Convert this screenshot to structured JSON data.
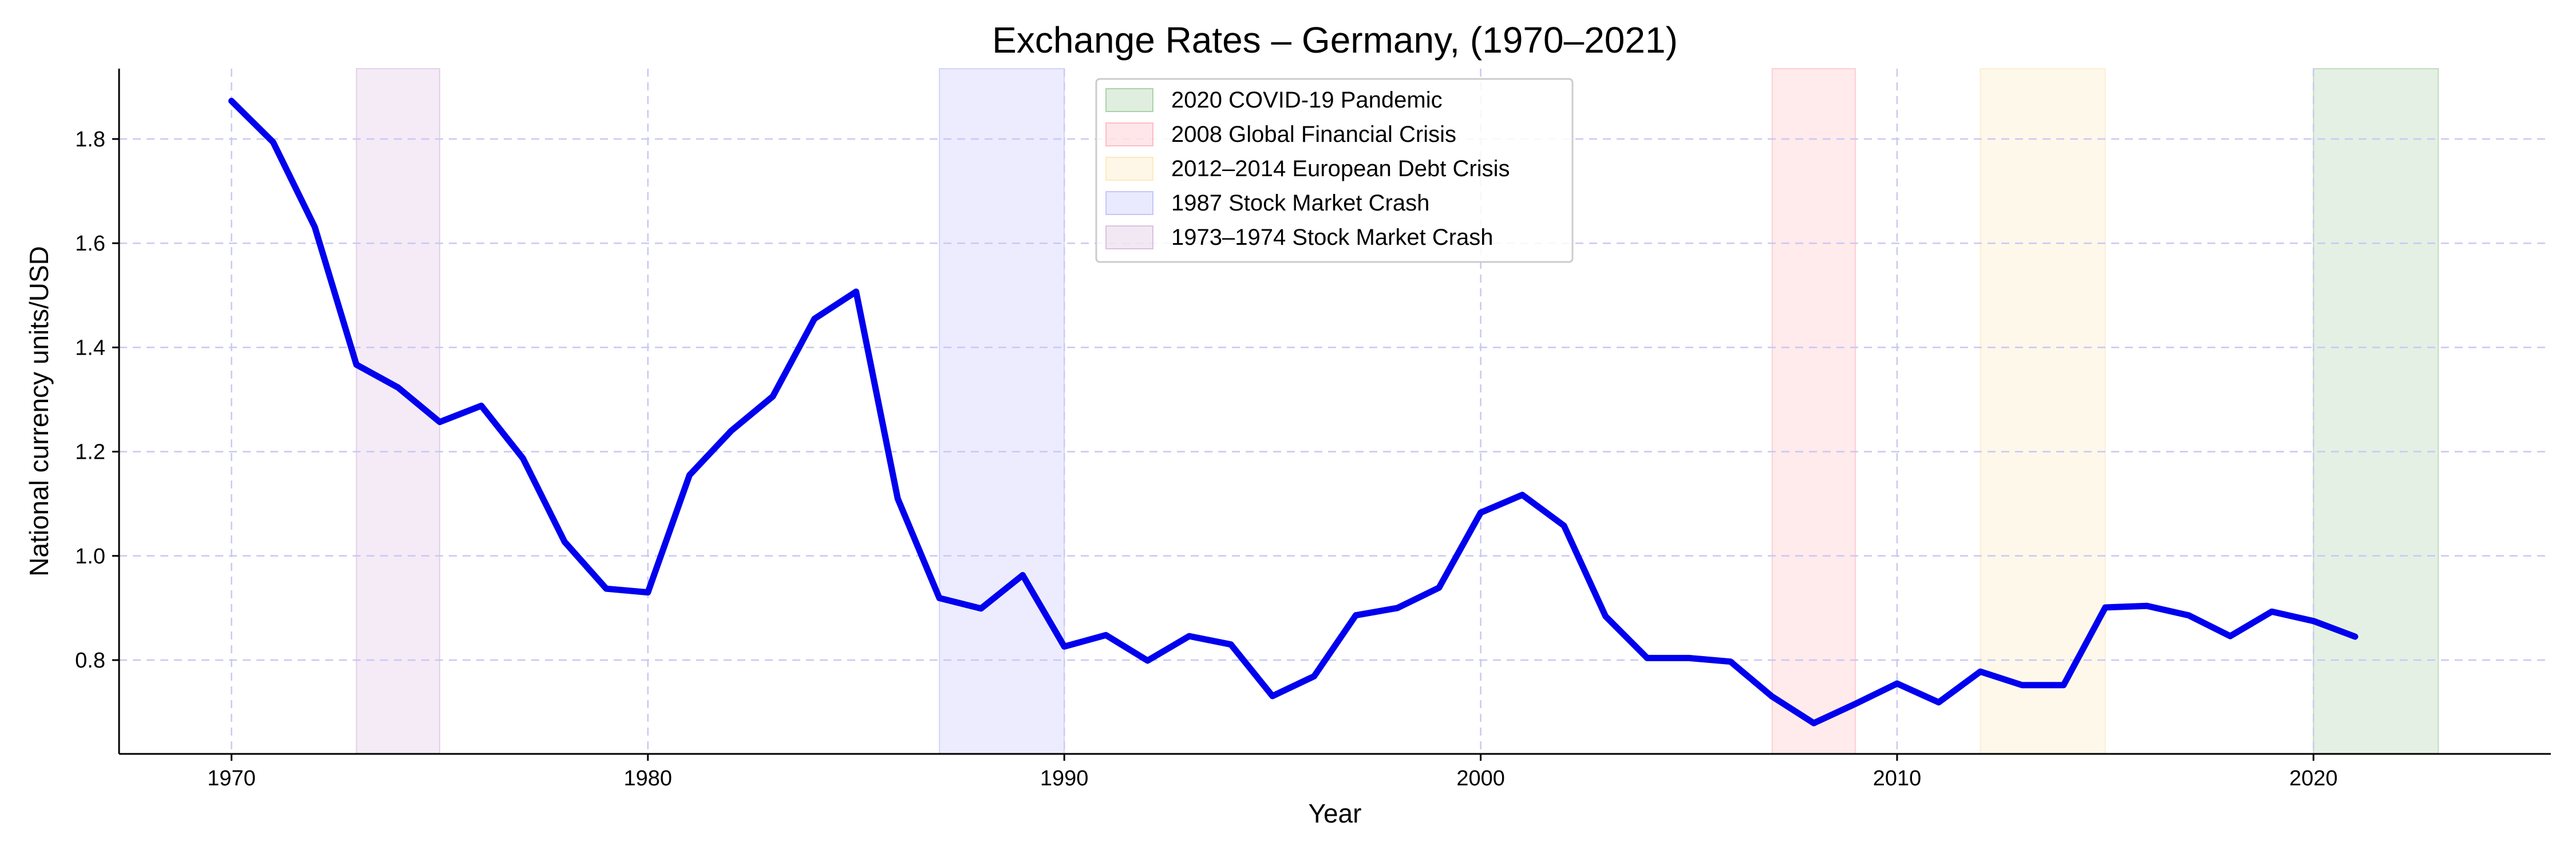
{
  "chart_data": {
    "type": "line",
    "title": "Exchange Rates – Germany, (1970–2021)",
    "xlabel": "Year",
    "ylabel": "National currency units/USD",
    "xlim": [
      1967.3,
      2025.7
    ],
    "ylim": [
      0.62,
      1.935
    ],
    "grid": true,
    "legend_position": "top-center",
    "x_ticks": [
      1970,
      1980,
      1990,
      2000,
      2010,
      2020
    ],
    "y_ticks": [
      0.8,
      1.0,
      1.2,
      1.4,
      1.6,
      1.8
    ],
    "series": [
      {
        "name": "",
        "color": "#0000ee",
        "x": [
          1970,
          1971,
          1972,
          1973,
          1974,
          1975,
          1976,
          1977,
          1978,
          1979,
          1980,
          1981,
          1982,
          1983,
          1984,
          1985,
          1986,
          1987,
          1988,
          1989,
          1990,
          1991,
          1992,
          1993,
          1994,
          1995,
          1996,
          1997,
          1998,
          1999,
          2000,
          2001,
          2002,
          2003,
          2004,
          2005,
          2006,
          2007,
          2008,
          2009,
          2010,
          2011,
          2012,
          2013,
          2014,
          2015,
          2016,
          2017,
          2018,
          2019,
          2020,
          2021
        ],
        "values": [
          1.873,
          1.794,
          1.631,
          1.367,
          1.323,
          1.257,
          1.288,
          1.187,
          1.027,
          0.937,
          0.93,
          1.155,
          1.24,
          1.306,
          1.455,
          1.507,
          1.11,
          0.919,
          0.899,
          0.963,
          0.826,
          0.848,
          0.799,
          0.846,
          0.83,
          0.731,
          0.769,
          0.886,
          0.9,
          0.939,
          1.083,
          1.117,
          1.058,
          0.884,
          0.804,
          0.804,
          0.797,
          0.73,
          0.679,
          0.716,
          0.755,
          0.719,
          0.778,
          0.752,
          0.752,
          0.901,
          0.904,
          0.886,
          0.846,
          0.893,
          0.875,
          0.845
        ]
      }
    ],
    "shaded_periods": [
      {
        "label": "2020 COVID-19 Pandemic",
        "start": 2020,
        "end": 2023,
        "color": "#2e8b2e"
      },
      {
        "label": "2008 Global Financial Crisis",
        "start": 2007,
        "end": 2009,
        "color": "#ff5a6a"
      },
      {
        "label": "2012–2014 European Debt Crisis",
        "start": 2012,
        "end": 2015,
        "color": "#f9c865"
      },
      {
        "label": "1987 Stock Market Crash",
        "start": 1987,
        "end": 1990,
        "color": "#6f6ff5"
      },
      {
        "label": "1973–1974 Stock Market Crash",
        "start": 1973,
        "end": 1975,
        "color": "#a862b8"
      }
    ]
  }
}
